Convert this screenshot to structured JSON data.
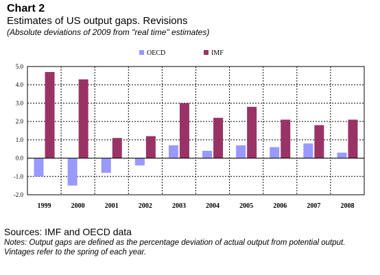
{
  "header": {
    "chart_label": "Chart 2",
    "title": "Estimates of US output gaps. Revisions",
    "subtitle": "(Absolute deviations of 2009 from \"real time\" estimates)"
  },
  "footer": {
    "sources": "Sources: IMF and OECD data",
    "notes": "Notes: Output gaps are defined as the percentage deviation of actual output from potential output. Vintages refer to the spring of each year."
  },
  "chart_data": {
    "type": "bar",
    "categories": [
      "1999",
      "2000",
      "2001",
      "2002",
      "2003",
      "2004",
      "2005",
      "2006",
      "2007",
      "2008"
    ],
    "series": [
      {
        "name": "OECD",
        "color": "#9999ff",
        "values": [
          -1.0,
          -1.5,
          -0.8,
          -0.4,
          0.7,
          0.4,
          0.7,
          0.6,
          0.8,
          0.3
        ]
      },
      {
        "name": "IMF",
        "color": "#993366",
        "values": [
          4.7,
          4.3,
          1.1,
          1.2,
          3.0,
          2.2,
          2.8,
          2.1,
          1.8,
          2.1
        ]
      }
    ],
    "ylim": [
      -2.0,
      5.0
    ],
    "yticks": [
      "-2.0",
      "-1.0",
      "0.0",
      "1.0",
      "2.0",
      "3.0",
      "4.0",
      "5.0"
    ],
    "grid": true,
    "legend": "top-center"
  }
}
